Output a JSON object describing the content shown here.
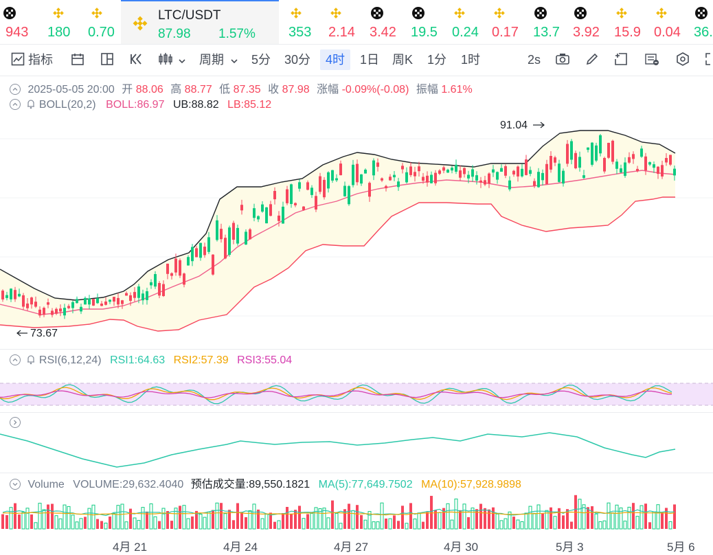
{
  "tickers_left": [
    {
      "value": "943",
      "dir": "down",
      "icon": "okx-icon"
    },
    {
      "value": "180",
      "dir": "up",
      "icon": "binance-icon"
    },
    {
      "value": "0.70",
      "dir": "up",
      "icon": "binance-icon"
    }
  ],
  "ticker_active": {
    "symbol": "LTC/USDT",
    "price": "87.98",
    "change": "1.57%",
    "icon": "binance-icon"
  },
  "tickers_right": [
    {
      "value": "353",
      "dir": "up",
      "icon": "binance-icon"
    },
    {
      "value": "2.14",
      "dir": "down",
      "icon": "binance-icon"
    },
    {
      "value": "3.42",
      "dir": "down",
      "icon": "okx-icon"
    },
    {
      "value": "19.5",
      "dir": "up",
      "icon": "okx-icon"
    },
    {
      "value": "0.24",
      "dir": "up",
      "icon": "binance-icon"
    },
    {
      "value": "0.17",
      "dir": "down",
      "icon": "binance-icon"
    },
    {
      "value": "13.7",
      "dir": "up",
      "icon": "okx-icon"
    },
    {
      "value": "3.92",
      "dir": "down",
      "icon": "okx-icon"
    },
    {
      "value": "15.9",
      "dir": "down",
      "icon": "binance-icon"
    },
    {
      "value": "0.04",
      "dir": "down",
      "icon": "binance-icon"
    },
    {
      "value": "36.",
      "dir": "up",
      "icon": "okx-icon"
    }
  ],
  "toolbar": {
    "indicators": "指标",
    "period": "周期",
    "intervals": [
      "5分",
      "30分",
      "4时",
      "1日",
      "周K",
      "1分",
      "1时"
    ],
    "active_interval": "4时",
    "refresh": "2s"
  },
  "ohlc": {
    "date": "2025-05-05 20:00",
    "open_label": "开",
    "open": "88.06",
    "high_label": "高",
    "high": "88.77",
    "low_label": "低",
    "low": "87.35",
    "close_label": "收",
    "close": "87.98",
    "change_label": "涨幅",
    "change": "-0.09%(-0.08)",
    "amp_label": "振幅",
    "amp": "1.61%"
  },
  "boll": {
    "name": "BOLL(20,2)",
    "boll": "BOLL:86.97",
    "ub": "UB:88.82",
    "lb": "LB:85.12"
  },
  "rsi": {
    "name": "RSI(6,12,24)",
    "rsi1": "RSI1:64.63",
    "rsi2": "RSI2:57.39",
    "rsi3": "RSI3:55.04"
  },
  "volume": {
    "name": "Volume",
    "volume": "VOLUME:29,632.4040",
    "est_label": "预估成交量:",
    "est": "89,550.1821",
    "ma5": "MA(5):77,649.7502",
    "ma10": "MA(10):57,928.9898"
  },
  "annotations": {
    "high": "91.04",
    "low": "73.67"
  },
  "x_labels": [
    "4月 21",
    "4月 24",
    "4月 27",
    "4月 30",
    "5月 3",
    "5月 6"
  ],
  "colors": {
    "up": "#0ecb81",
    "down": "#f6465d",
    "accent": "#2f6ff0",
    "ub": "#1e2329",
    "lb": "#f6465d",
    "mid": "#f0608c",
    "band": "#fefbe6"
  },
  "chart_data": {
    "type": "candlestick",
    "x_labels": [
      "4月 21",
      "4月 24",
      "4月 27",
      "4月 30",
      "5月 3",
      "5月 6"
    ],
    "annotated_high": 91.04,
    "annotated_low": 73.67,
    "last": {
      "open": 88.06,
      "high": 88.77,
      "low": 87.35,
      "close": 87.98
    },
    "boll": {
      "mid": 86.97,
      "ub": 88.82,
      "lb": 85.12
    },
    "rsi": {
      "rsi1": 64.63,
      "rsi2": 57.39,
      "rsi3": 55.04
    }
  }
}
